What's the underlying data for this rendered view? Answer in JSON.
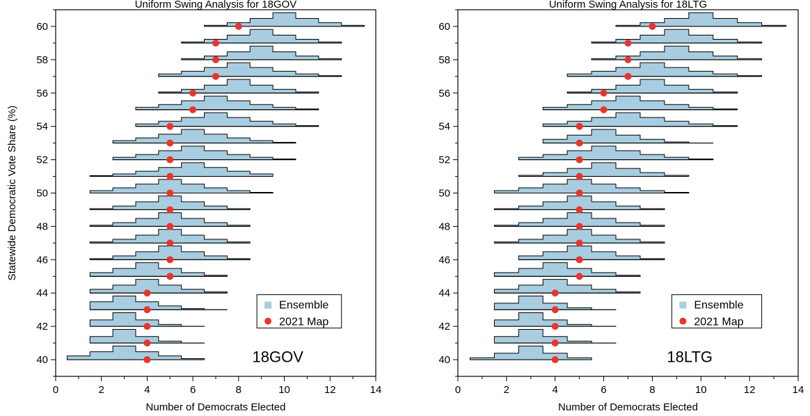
{
  "panels": [
    {
      "id": "18GOV",
      "title": "Uniform Swing Analysis for 18GOV",
      "ylabel": "Statewide Democratic Vote Share (%)",
      "xlabel": "Number of Democrats Elected",
      "inset_label": "18GOV"
    },
    {
      "id": "18LTG",
      "title": "Uniform Swing Analysis for 18LTG",
      "ylabel": "",
      "xlabel": "Number of Democrats Elected",
      "inset_label": "18LTG"
    }
  ],
  "legend": {
    "ensemble": "Ensemble",
    "map": "2021 Map"
  },
  "colors": {
    "ensemble_fill": "#a8cde0",
    "map_dot": "#e8352b",
    "line": "#000000"
  },
  "chart_data": [
    {
      "type": "histogram-ridge",
      "title": "Uniform Swing Analysis for 18GOV",
      "xlabel": "Number of Democrats Elected",
      "ylabel": "Statewide Democratic Vote Share (%)",
      "xlim": [
        0,
        14
      ],
      "ylim": [
        39,
        61
      ],
      "xticks": [
        0,
        2,
        4,
        6,
        8,
        10,
        12,
        14
      ],
      "yticks": [
        40,
        42,
        44,
        46,
        48,
        50,
        52,
        54,
        56,
        58,
        60
      ],
      "grid": false,
      "legend_position": "bottom-right",
      "rows": [
        {
          "share": 40,
          "map": 4,
          "range": [
            0.5,
            6.5
          ],
          "peak": 3
        },
        {
          "share": 41,
          "map": 4,
          "range": [
            1.5,
            6.5
          ],
          "peak": 3
        },
        {
          "share": 42,
          "map": 4,
          "range": [
            1.5,
            6.5
          ],
          "peak": 3
        },
        {
          "share": 43,
          "map": 4,
          "range": [
            1.5,
            7.5
          ],
          "peak": 3
        },
        {
          "share": 44,
          "map": 4,
          "range": [
            1.5,
            7.5
          ],
          "peak": 4
        },
        {
          "share": 45,
          "map": 5,
          "range": [
            1.5,
            7.5
          ],
          "peak": 4
        },
        {
          "share": 46,
          "map": 5,
          "range": [
            1.5,
            8.5
          ],
          "peak": 5
        },
        {
          "share": 47,
          "map": 5,
          "range": [
            1.5,
            8.5
          ],
          "peak": 5
        },
        {
          "share": 48,
          "map": 5,
          "range": [
            1.5,
            8.5
          ],
          "peak": 5
        },
        {
          "share": 49,
          "map": 5,
          "range": [
            1.5,
            8.5
          ],
          "peak": 5
        },
        {
          "share": 50,
          "map": 5,
          "range": [
            1.5,
            9.5
          ],
          "peak": 5
        },
        {
          "share": 51,
          "map": 5,
          "range": [
            1.5,
            9.5
          ],
          "peak": 6
        },
        {
          "share": 52,
          "map": 5,
          "range": [
            2.5,
            10.5
          ],
          "peak": 6
        },
        {
          "share": 53,
          "map": 5,
          "range": [
            2.5,
            10.5
          ],
          "peak": 6
        },
        {
          "share": 54,
          "map": 5,
          "range": [
            3.5,
            11.5
          ],
          "peak": 7
        },
        {
          "share": 55,
          "map": 6,
          "range": [
            3.5,
            11.5
          ],
          "peak": 7
        },
        {
          "share": 56,
          "map": 6,
          "range": [
            4.5,
            11.5
          ],
          "peak": 8
        },
        {
          "share": 57,
          "map": 7,
          "range": [
            4.5,
            12.5
          ],
          "peak": 8
        },
        {
          "share": 58,
          "map": 7,
          "range": [
            5.5,
            12.5
          ],
          "peak": 9
        },
        {
          "share": 59,
          "map": 7,
          "range": [
            5.5,
            12.5
          ],
          "peak": 9
        },
        {
          "share": 60,
          "map": 8,
          "range": [
            6.5,
            13.5
          ],
          "peak": 10
        }
      ]
    },
    {
      "type": "histogram-ridge",
      "title": "Uniform Swing Analysis for 18LTG",
      "xlabel": "Number of Democrats Elected",
      "ylabel": "",
      "xlim": [
        0,
        14
      ],
      "ylim": [
        39,
        61
      ],
      "xticks": [
        0,
        2,
        4,
        6,
        8,
        10,
        12,
        14
      ],
      "yticks": [
        40,
        42,
        44,
        46,
        48,
        50,
        52,
        54,
        56,
        58,
        60
      ],
      "grid": false,
      "legend_position": "bottom-right",
      "rows": [
        {
          "share": 40,
          "map": 4,
          "range": [
            0.5,
            5.5
          ],
          "peak": 3
        },
        {
          "share": 41,
          "map": 4,
          "range": [
            1.5,
            6.5
          ],
          "peak": 3
        },
        {
          "share": 42,
          "map": 4,
          "range": [
            1.5,
            6.5
          ],
          "peak": 3
        },
        {
          "share": 43,
          "map": 4,
          "range": [
            1.5,
            6.5
          ],
          "peak": 3
        },
        {
          "share": 44,
          "map": 4,
          "range": [
            1.5,
            7.5
          ],
          "peak": 4
        },
        {
          "share": 45,
          "map": 5,
          "range": [
            1.5,
            7.5
          ],
          "peak": 4
        },
        {
          "share": 46,
          "map": 5,
          "range": [
            2.5,
            8.5
          ],
          "peak": 5
        },
        {
          "share": 47,
          "map": 5,
          "range": [
            1.5,
            8.5
          ],
          "peak": 5
        },
        {
          "share": 48,
          "map": 5,
          "range": [
            1.5,
            8.5
          ],
          "peak": 5
        },
        {
          "share": 49,
          "map": 5,
          "range": [
            1.5,
            8.5
          ],
          "peak": 5
        },
        {
          "share": 50,
          "map": 5,
          "range": [
            1.5,
            9.5
          ],
          "peak": 5
        },
        {
          "share": 51,
          "map": 5,
          "range": [
            2.5,
            9.5
          ],
          "peak": 6
        },
        {
          "share": 52,
          "map": 5,
          "range": [
            2.5,
            10.5
          ],
          "peak": 6
        },
        {
          "share": 53,
          "map": 5,
          "range": [
            3.5,
            10.5
          ],
          "peak": 6
        },
        {
          "share": 54,
          "map": 5,
          "range": [
            3.5,
            11.5
          ],
          "peak": 7
        },
        {
          "share": 55,
          "map": 6,
          "range": [
            3.5,
            11.5
          ],
          "peak": 7
        },
        {
          "share": 56,
          "map": 6,
          "range": [
            4.5,
            11.5
          ],
          "peak": 8
        },
        {
          "share": 57,
          "map": 7,
          "range": [
            4.5,
            12.5
          ],
          "peak": 8
        },
        {
          "share": 58,
          "map": 7,
          "range": [
            5.5,
            12.5
          ],
          "peak": 9
        },
        {
          "share": 59,
          "map": 7,
          "range": [
            5.5,
            12.5
          ],
          "peak": 9
        },
        {
          "share": 60,
          "map": 8,
          "range": [
            6.5,
            13.5
          ],
          "peak": 10
        }
      ]
    }
  ]
}
